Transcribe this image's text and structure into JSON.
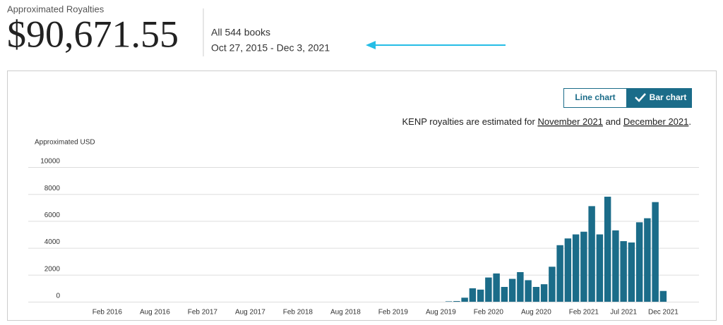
{
  "header": {
    "label": "Approximated Royalties",
    "amount": "$90,671.55",
    "books": "All 544 books",
    "range": "Oct 27, 2015 - Dec 3, 2021"
  },
  "buttons": [
    "Line chart",
    "Bar chart"
  ],
  "note": {
    "prefix": "KENP royalties are estimated for ",
    "link1": "November 2021",
    "mid": " and ",
    "link2": "December 2021",
    "suffix": "."
  },
  "chart_data": {
    "type": "bar",
    "y_label": "Approximated USD",
    "color": "#1b6c89",
    "grid": true,
    "ylim": [
      0,
      10000
    ],
    "yticks": [
      0,
      2000,
      4000,
      6000,
      8000,
      10000
    ],
    "categories": [
      null,
      null,
      null,
      null,
      null,
      null,
      null,
      null,
      null,
      "Feb 2016",
      null,
      null,
      null,
      null,
      null,
      "Aug 2016",
      null,
      null,
      null,
      null,
      null,
      "Feb 2017",
      null,
      null,
      null,
      null,
      null,
      "Aug 2017",
      null,
      null,
      null,
      null,
      null,
      "Feb 2018",
      null,
      null,
      null,
      null,
      null,
      "Aug 2018",
      null,
      null,
      null,
      null,
      null,
      "Feb 2019",
      null,
      null,
      null,
      null,
      null,
      "Aug 2019",
      null,
      null,
      null,
      null,
      null,
      "Feb 2020",
      null,
      null,
      null,
      null,
      null,
      "Aug 2020",
      null,
      null,
      null,
      null,
      null,
      "Feb 2021",
      null,
      null,
      null,
      null,
      "Jul 2021",
      null,
      null,
      null,
      null,
      "Dec 2021",
      null,
      null,
      null,
      null
    ],
    "values": [
      null,
      null,
      null,
      null,
      null,
      0,
      0,
      0,
      0,
      0,
      0,
      0,
      0,
      0,
      0,
      0,
      0,
      0,
      0,
      0,
      0,
      0,
      0,
      0,
      0,
      0,
      0,
      0,
      0,
      0,
      0,
      0,
      0,
      0,
      0,
      0,
      0,
      0,
      0,
      0,
      0,
      0,
      0,
      0,
      0,
      0,
      0,
      0,
      0,
      0,
      0,
      0,
      30,
      50,
      300,
      1000,
      900,
      1800,
      2100,
      1100,
      1700,
      2200,
      1600,
      1100,
      1300,
      2600,
      4200,
      4700,
      5000,
      5200,
      7100,
      5000,
      7800,
      5300,
      4500,
      4400,
      5900,
      6200,
      7400,
      800,
      null,
      null,
      null,
      null
    ]
  }
}
